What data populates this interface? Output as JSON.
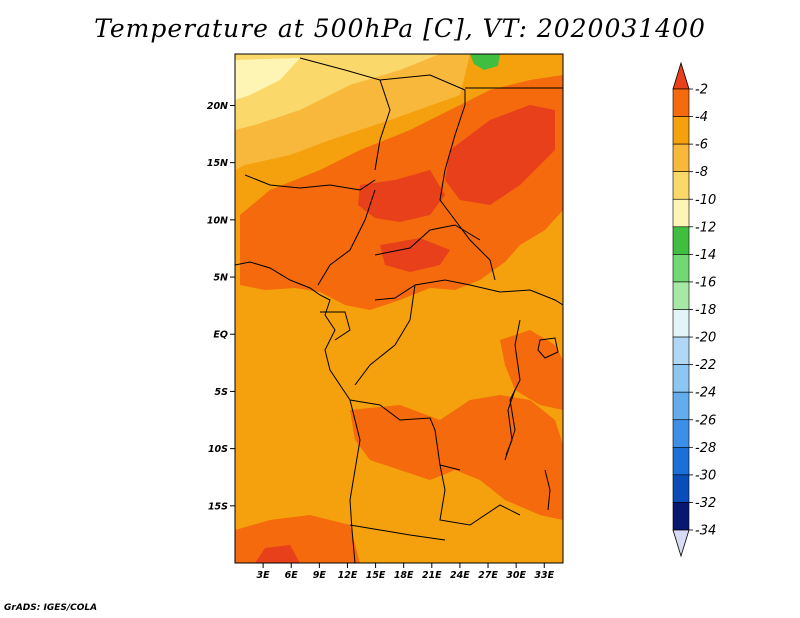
{
  "title": "Temperature at 500hPa [C], VT: 2020031400",
  "credit": "GrADS: IGES/COLA",
  "map": {
    "region": "Central Africa",
    "lon_range": [
      0,
      35
    ],
    "lat_range": [
      -20,
      24.5
    ],
    "lat_ticks": [
      {
        "value": 20,
        "label": "20N"
      },
      {
        "value": 15,
        "label": "15N"
      },
      {
        "value": 10,
        "label": "10N"
      },
      {
        "value": 5,
        "label": "5N"
      },
      {
        "value": 0,
        "label": "EQ"
      },
      {
        "value": -5,
        "label": "5S"
      },
      {
        "value": -10,
        "label": "10S"
      },
      {
        "value": -15,
        "label": "15S"
      }
    ],
    "lon_ticks": [
      {
        "value": 3,
        "label": "3E"
      },
      {
        "value": 6,
        "label": "6E"
      },
      {
        "value": 9,
        "label": "9E"
      },
      {
        "value": 12,
        "label": "12E"
      },
      {
        "value": 15,
        "label": "15E"
      },
      {
        "value": 18,
        "label": "18E"
      },
      {
        "value": 21,
        "label": "21E"
      },
      {
        "value": 24,
        "label": "24E"
      },
      {
        "value": 27,
        "label": "27E"
      },
      {
        "value": 30,
        "label": "30E"
      },
      {
        "value": 33,
        "label": "33E"
      }
    ]
  },
  "colorbar": {
    "labels": [
      "-2",
      "-4",
      "-6",
      "-8",
      "-10",
      "-12",
      "-14",
      "-16",
      "-18",
      "-20",
      "-22",
      "-24",
      "-26",
      "-28",
      "-30",
      "-32",
      "-34"
    ],
    "colors": [
      "#e8401a",
      "#f46a0c",
      "#f5a10d",
      "#f8b83c",
      "#fbd86a",
      "#fef4b4",
      "#3fbe3f",
      "#72d872",
      "#a6e8a6",
      "#e2f4f8",
      "#b0d8f6",
      "#8cc6f2",
      "#64acec",
      "#3c8ee6",
      "#1c6ed8",
      "#0b4db8",
      "#081870",
      "#d9dbf5"
    ]
  }
}
